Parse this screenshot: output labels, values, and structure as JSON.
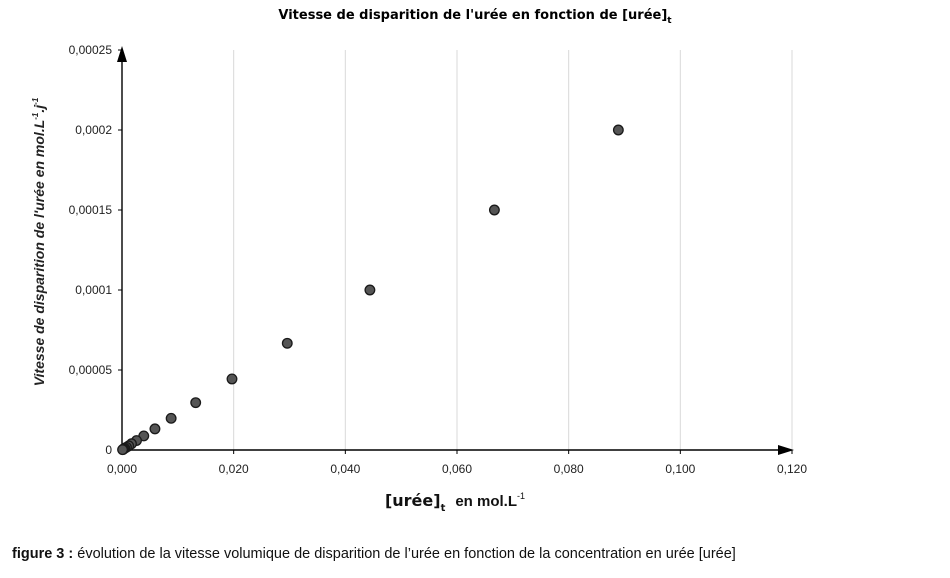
{
  "chart_data": {
    "type": "scatter",
    "title": {
      "main": "Vitesse de disparition de l'urée en fonction de [urée]",
      "subscript": "t"
    },
    "xlabel": {
      "main": "[urée]",
      "subscript": "t",
      "unit": "en mol.L",
      "unit_superscript": "-1"
    },
    "ylabel": "Vitesse de disparition de l'urée  en mol.L",
    "ylabel_sup1": "-1",
    "ylabel_mid": ".j",
    "ylabel_sup2": "-1",
    "xlim": [
      0,
      0.12
    ],
    "ylim": [
      0,
      0.00025
    ],
    "x_ticks": [
      "0,000",
      "0,020",
      "0,040",
      "0,060",
      "0,080",
      "0,100",
      "0,120"
    ],
    "x_tick_values": [
      0,
      0.02,
      0.04,
      0.06,
      0.08,
      0.1,
      0.12
    ],
    "y_ticks": [
      "0",
      "0,00005",
      "0,0001",
      "0,00015",
      "0,0002",
      "0,00025"
    ],
    "y_tick_values": [
      0,
      5e-05,
      0.0001,
      0.00015,
      0.0002,
      0.00025
    ],
    "grid": "vertical",
    "points": [
      {
        "x": 0.0889,
        "y": 0.0002
      },
      {
        "x": 0.0667,
        "y": 0.00015
      },
      {
        "x": 0.0444,
        "y": 0.0001
      },
      {
        "x": 0.0296,
        "y": 6.67e-05
      },
      {
        "x": 0.0197,
        "y": 4.44e-05
      },
      {
        "x": 0.0132,
        "y": 2.96e-05
      },
      {
        "x": 0.0088,
        "y": 1.98e-05
      },
      {
        "x": 0.0059,
        "y": 1.32e-05
      },
      {
        "x": 0.0039,
        "y": 8.8e-06
      },
      {
        "x": 0.0026,
        "y": 5.9e-06
      },
      {
        "x": 0.0017,
        "y": 3.9e-06
      },
      {
        "x": 0.0012,
        "y": 2.6e-06
      },
      {
        "x": 0.0008,
        "y": 1.7e-06
      },
      {
        "x": 0.0005,
        "y": 1.1e-06
      },
      {
        "x": 0.0003,
        "y": 7e-07
      },
      {
        "x": 0.0002,
        "y": 4e-07
      },
      {
        "x": 0.0001,
        "y": 2e-07
      }
    ],
    "marker_color": "#555555",
    "marker_edge": "#1a1a1a"
  },
  "caption": {
    "lead": "figure 3 :",
    "text": " évolution  de la vitesse volumique de disparition de l’urée en fonction de la concentration en urée [urée]"
  }
}
